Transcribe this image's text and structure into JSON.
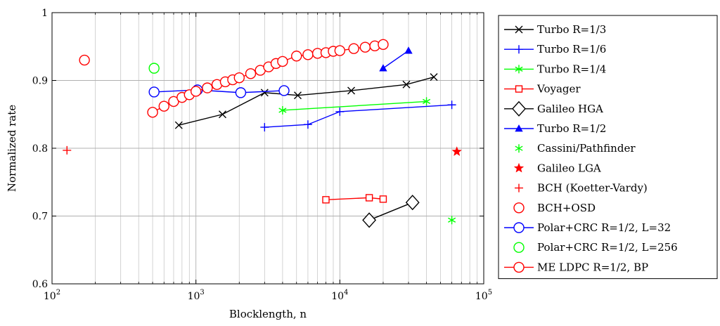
{
  "chart_data": {
    "type": "scatter",
    "title": "",
    "xlabel": "Blocklength, n",
    "ylabel": "Normalized rate",
    "xscale": "log",
    "xlim": [
      100,
      100000
    ],
    "ylim": [
      0.6,
      1.0
    ],
    "xticks": [
      {
        "value": 100,
        "base": "10",
        "exp": "2"
      },
      {
        "value": 1000,
        "base": "10",
        "exp": "3"
      },
      {
        "value": 10000,
        "base": "10",
        "exp": "4"
      },
      {
        "value": 100000,
        "base": "10",
        "exp": "5"
      }
    ],
    "yticks": [
      {
        "value": 0.6,
        "label": "0.6"
      },
      {
        "value": 0.7,
        "label": "0.7"
      },
      {
        "value": 0.8,
        "label": "0.8"
      },
      {
        "value": 0.9,
        "label": "0.9"
      },
      {
        "value": 1.0,
        "label": "1"
      }
    ],
    "grid": true,
    "legend_position": "outside-right",
    "series": [
      {
        "name": "Turbo R=1/3",
        "color": "#000000",
        "marker": "x",
        "line": true,
        "points": [
          [
            760,
            0.834
          ],
          [
            1530,
            0.85
          ],
          [
            3000,
            0.882
          ],
          [
            5100,
            0.878
          ],
          [
            12000,
            0.885
          ],
          [
            29000,
            0.894
          ],
          [
            45000,
            0.905
          ]
        ]
      },
      {
        "name": "Turbo R=1/6",
        "color": "#0000ff",
        "marker": "plus",
        "line": true,
        "points": [
          [
            3000,
            0.831
          ],
          [
            6000,
            0.835
          ],
          [
            10000,
            0.854
          ],
          [
            60000,
            0.864
          ]
        ]
      },
      {
        "name": "Turbo R=1/4",
        "color": "#00ff00",
        "marker": "asterisk",
        "line": true,
        "points": [
          [
            4000,
            0.856
          ],
          [
            40000,
            0.869
          ]
        ]
      },
      {
        "name": "Voyager",
        "color": "#ff0000",
        "marker": "square",
        "line": true,
        "points": [
          [
            8000,
            0.724
          ],
          [
            16000,
            0.727
          ],
          [
            20000,
            0.725
          ]
        ]
      },
      {
        "name": "Galileo HGA",
        "color": "#000000",
        "marker": "diamond",
        "line": true,
        "points": [
          [
            16000,
            0.694
          ],
          [
            32000,
            0.72
          ]
        ]
      },
      {
        "name": "Turbo R=1/2",
        "color": "#0000ff",
        "marker": "triangle",
        "line": true,
        "points": [
          [
            20000,
            0.918
          ],
          [
            30000,
            0.944
          ]
        ]
      },
      {
        "name": "Cassini/Pathfinder",
        "color": "#00ff00",
        "marker": "asterisk",
        "line": false,
        "points": [
          [
            60000,
            0.694
          ]
        ]
      },
      {
        "name": "Galileo LGA",
        "color": "#ff0000",
        "marker": "star",
        "line": false,
        "points": [
          [
            65000,
            0.795
          ]
        ]
      },
      {
        "name": "BCH (Koetter-Vardy)",
        "color": "#ff0000",
        "marker": "plus",
        "line": false,
        "points": [
          [
            127,
            0.797
          ]
        ]
      },
      {
        "name": "BCH+OSD",
        "color": "#ff0000",
        "marker": "circle",
        "line": false,
        "points": [
          [
            168,
            0.93
          ]
        ]
      },
      {
        "name": "Polar+CRC R=1/2, L=32",
        "color": "#0000ff",
        "marker": "circle",
        "line": true,
        "points": [
          [
            512,
            0.883
          ],
          [
            1024,
            0.886
          ],
          [
            2048,
            0.882
          ],
          [
            4096,
            0.885
          ]
        ]
      },
      {
        "name": "Polar+CRC R=1/2, L=256",
        "color": "#00ff00",
        "marker": "circle",
        "line": false,
        "points": [
          [
            512,
            0.918
          ]
        ]
      },
      {
        "name": "ME LDPC R=1/2, BP",
        "color": "#ff0000",
        "marker": "circle",
        "line": true,
        "points": [
          [
            500,
            0.853
          ],
          [
            600,
            0.862
          ],
          [
            700,
            0.869
          ],
          [
            800,
            0.875
          ],
          [
            900,
            0.879
          ],
          [
            1000,
            0.884
          ],
          [
            1200,
            0.889
          ],
          [
            1400,
            0.894
          ],
          [
            1600,
            0.898
          ],
          [
            1800,
            0.901
          ],
          [
            2000,
            0.904
          ],
          [
            2400,
            0.91
          ],
          [
            2800,
            0.915
          ],
          [
            3200,
            0.92
          ],
          [
            3600,
            0.925
          ],
          [
            4000,
            0.928
          ],
          [
            5000,
            0.936
          ],
          [
            6000,
            0.938
          ],
          [
            7000,
            0.94
          ],
          [
            8000,
            0.941
          ],
          [
            9000,
            0.943
          ],
          [
            10000,
            0.944
          ],
          [
            12500,
            0.947
          ],
          [
            15000,
            0.949
          ],
          [
            17500,
            0.951
          ],
          [
            20000,
            0.953
          ]
        ]
      }
    ]
  }
}
